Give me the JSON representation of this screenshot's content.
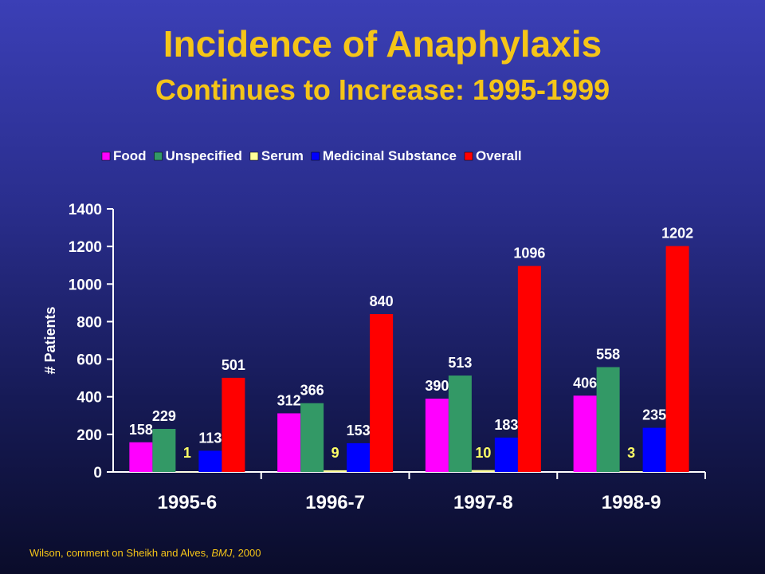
{
  "page": {
    "title": "Incidence of Anaphylaxis",
    "subtitle": "Continues to Increase: 1995-1999"
  },
  "source": {
    "text": "Wilson, comment on Sheikh and Alves, ",
    "journal": "BMJ",
    "year": ", 2000"
  },
  "chart_data": {
    "type": "bar",
    "categories": [
      "1995-6",
      "1996-7",
      "1997-8",
      "1998-9"
    ],
    "series": [
      {
        "name": "Food",
        "color": "#ff00ff",
        "values": [
          158,
          312,
          390,
          406
        ]
      },
      {
        "name": "Unspecified",
        "color": "#339966",
        "values": [
          229,
          366,
          513,
          558
        ]
      },
      {
        "name": "Serum",
        "color": "#ffff99",
        "values": [
          1,
          9,
          10,
          3
        ]
      },
      {
        "name": "Medicinal Substance",
        "color": "#0000ff",
        "values": [
          113,
          153,
          183,
          235
        ]
      },
      {
        "name": "Overall",
        "color": "#ff0000",
        "values": [
          501,
          840,
          1096,
          1202
        ]
      }
    ],
    "ylabel": "# Patients",
    "xlabel": "",
    "ylim": [
      0,
      1400
    ],
    "yticks": [
      0,
      200,
      400,
      600,
      800,
      1000,
      1200,
      1400
    ],
    "legend_position": "top",
    "grid": false,
    "label_colors": {
      "default": "#ffffff",
      "Serum": "#ffff66"
    }
  }
}
